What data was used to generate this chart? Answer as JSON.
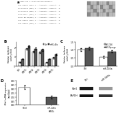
{
  "panel_b": {
    "categories": [
      "Ctrl",
      "WNT1",
      "WNT2",
      "WNT3",
      "WNT4",
      "WNT5"
    ],
    "ctrl_values": [
      0.4,
      1.85,
      1.55,
      1.45,
      0.35,
      0.85
    ],
    "mir_values": [
      0.75,
      2.1,
      1.85,
      1.75,
      0.75,
      1.25
    ],
    "ctrl_err": [
      0.04,
      0.09,
      0.09,
      0.09,
      0.04,
      0.07
    ],
    "mir_err": [
      0.05,
      0.11,
      0.11,
      0.11,
      0.05,
      0.08
    ],
    "ylabel": "Relative luciferase\nactivity (fold)",
    "label_ctrl": "Ctrl",
    "label_mir": "miR-146a",
    "panel_label": "B",
    "ylim": [
      0,
      2.6
    ]
  },
  "panel_c": {
    "categories": [
      "Ctrl",
      "miR-146a"
    ],
    "au1_values": [
      1.0,
      0.55
    ],
    "au2_values": [
      1.1,
      0.9
    ],
    "au1_err": [
      0.08,
      0.06
    ],
    "au2_err": [
      0.09,
      0.08
    ],
    "ylabel": "Relative luciferase\nactivity (fold)",
    "label_au1": "AU1-146",
    "label_au2": "AU1-Sponge",
    "panel_label": "C",
    "ylim": [
      0,
      1.5
    ]
  },
  "panel_d": {
    "categories": [
      "hCtrl",
      "miR-146a\nhMSCs"
    ],
    "values": [
      0.82,
      0.7
    ],
    "errors": [
      0.022,
      0.018
    ],
    "ylabel": "Wnt1 mRNA expression\nlevel(fold)",
    "ylim": [
      0.6,
      0.9
    ],
    "yticks": [
      0.6,
      0.65,
      0.7,
      0.75,
      0.8,
      0.85,
      0.9
    ],
    "panel_label": "D"
  },
  "panel_e": {
    "panel_label": "E",
    "labels_x": [
      "Ctrl",
      "miR-146a"
    ],
    "bands": [
      "Wnt1",
      "GAPDH"
    ],
    "ctrl_wnt1_color": "#1a1a1a",
    "mir_wnt1_color": "#999999",
    "ctrl_gapdh_color": "#111111",
    "mir_gapdh_color": "#333333"
  },
  "panel_a": {
    "panel_label": "a",
    "seq_lines": [
      "hsa-miR-146a  5' UGAGAACUGAAUUCCAUGGGUU 3'",
      "",
      "Homo sapiens WNT1  3' ACUCUUGACUUAGGUA... 5'",
      "Mus musculus       3' ACUCUUGACUUAGGUA... 5'",
      "Rattus norveg.     3' ACUCUUGACUUAGGUA... 5'",
      "Danio rerio        3' ACUCUUGACUUAGGUA... 5'",
      "Homo sapiens WNT2  3' ACUCUUGACUUAGGUA... 5'",
      "Homo sapiens WNT3  3' ACUCUUGACUUAGGUA... 5'"
    ]
  },
  "colors": {
    "white_bar": "#ffffff",
    "dark_bar": "#555555",
    "border": "#000000",
    "background": "#ffffff",
    "grid_light": "#dddddd",
    "grid_dark": "#aaaaaa"
  }
}
